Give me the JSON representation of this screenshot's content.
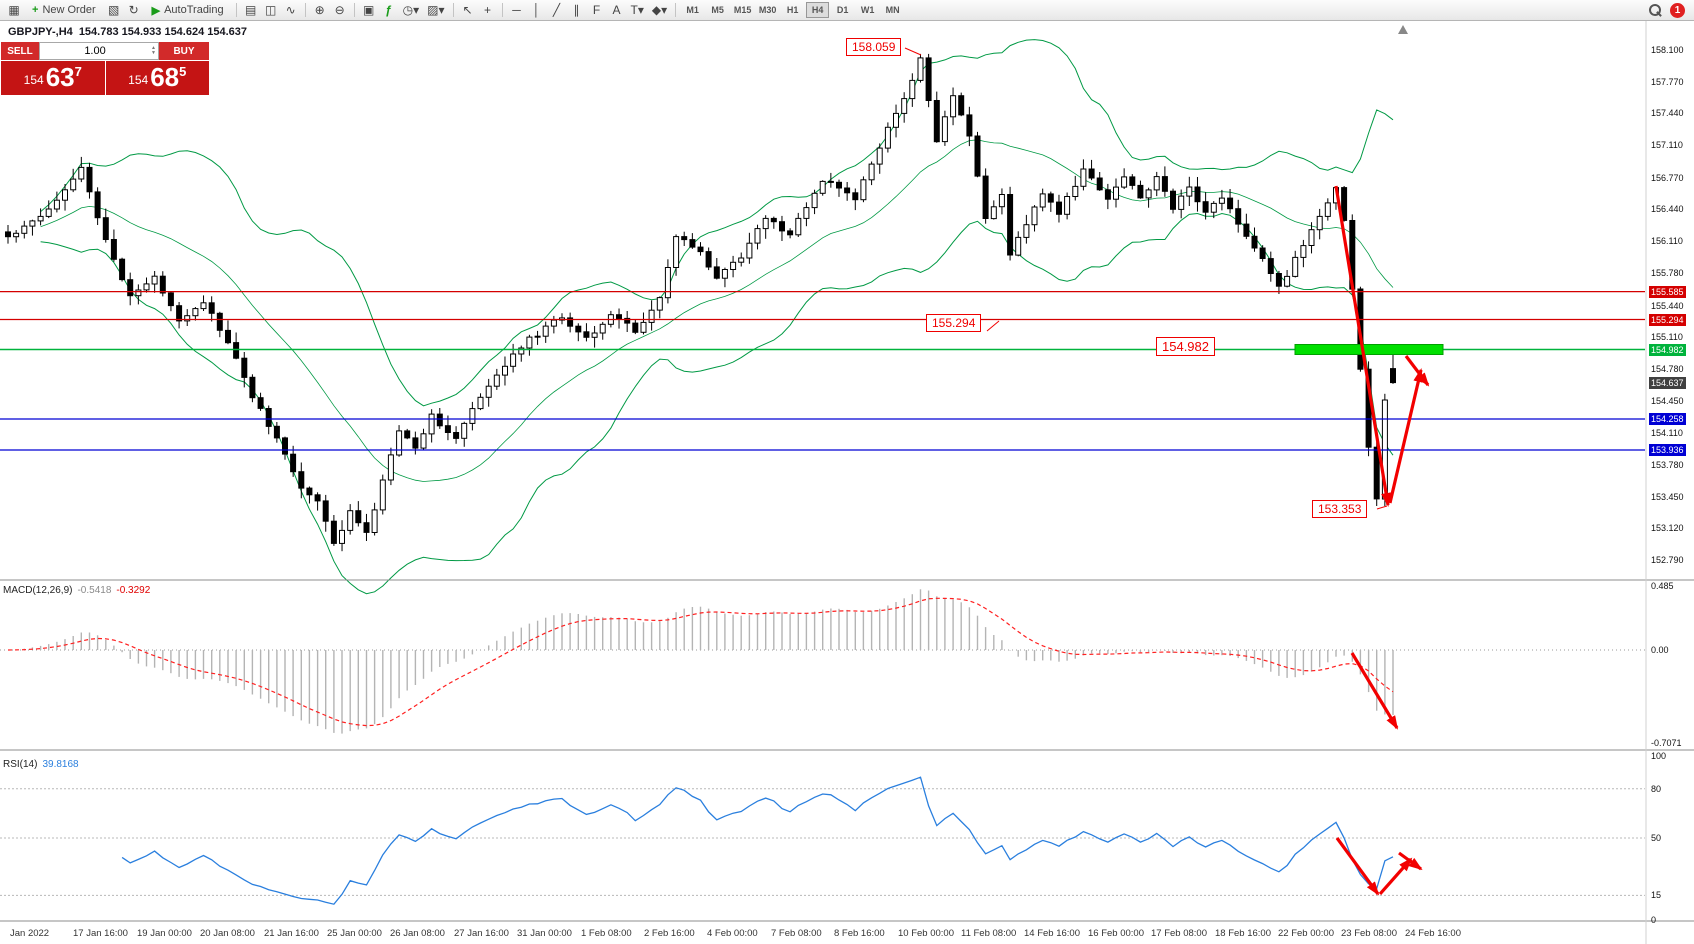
{
  "toolbar": {
    "new_order_label": "New Order",
    "autotrading_label": "AutoTrading",
    "timeframes": [
      "M1",
      "M5",
      "M15",
      "M30",
      "H1",
      "H4",
      "D1",
      "W1",
      "MN"
    ],
    "active_timeframe": "H4",
    "notification_count": "1"
  },
  "icons": {
    "new_chart": "▦",
    "new_order": "+",
    "profiles": "▧",
    "refresh": "↻",
    "play": "▶",
    "bar_chart": "▤",
    "candle_chart": "◫",
    "line_chart": "∿",
    "zoom_in": "⊕",
    "zoom_out": "⊖",
    "tile_windows": "▣",
    "indicators": "ƒ",
    "periods": "◷",
    "templates": "▨",
    "caret": "▾",
    "cursor": "↖",
    "crosshair": "+",
    "vertical_line": "│",
    "horizontal_line": "─",
    "trendline": "╱",
    "channel": "∥",
    "fibonacci": "F",
    "text": "A",
    "text_label": "T",
    "shapes": "◆",
    "up_caret": "▲",
    "down_caret": "▼"
  },
  "symbol_header": {
    "title": "GBPJPY-,H4",
    "ohlc": "154.783 154.933 154.624 154.637"
  },
  "trade_panel": {
    "sell_label": "SELL",
    "buy_label": "BUY",
    "volume": "1.00",
    "sell_prefix": "154",
    "sell_main": "63",
    "sell_sup": "7",
    "buy_prefix": "154",
    "buy_main": "68",
    "buy_sup": "5"
  },
  "macd": {
    "name": "MACD(12,26,9)",
    "value_main": "-0.5418",
    "value_signal": "-0.3292"
  },
  "rsi": {
    "name": "RSI(14)",
    "value": "39.8168"
  },
  "main_chart": {
    "callouts": [
      {
        "value": "158.059"
      },
      {
        "value": "155.294"
      },
      {
        "value": "154.982"
      },
      {
        "value": "153.353"
      }
    ]
  },
  "chart_data": {
    "type": "candlestick",
    "symbol": "GBPJPY-",
    "timeframe": "H4",
    "title": "GBPJPY- H4 with Bollinger Bands, MACD(12,26,9) and RSI(14)",
    "last_ohlc": {
      "open": 154.783,
      "high": 154.933,
      "low": 154.624,
      "close": 154.637
    },
    "price_axis_ticks": [
      "158.100",
      "157.770",
      "157.440",
      "157.110",
      "156.770",
      "156.440",
      "156.110",
      "155.780",
      "155.440",
      "155.110",
      "154.780",
      "154.450",
      "154.110",
      "153.780",
      "153.450",
      "153.120",
      "152.790"
    ],
    "price_axis_range": [
      152.603,
      158.433
    ],
    "level_lines": [
      {
        "price": 155.585,
        "color": "#d40000"
      },
      {
        "price": 155.294,
        "color": "#d40000"
      },
      {
        "price": 154.982,
        "color": "#00b33c"
      },
      {
        "price": 154.258,
        "color": "#0000d4"
      },
      {
        "price": 153.936,
        "color": "#0000d4"
      }
    ],
    "current_price": {
      "value": 154.637,
      "badge_color": "#404040"
    },
    "highlight_rect": {
      "price": 154.982,
      "color": "#00e000"
    },
    "candles": {
      "count": 171,
      "close_anchors": [
        [
          0,
          156.15
        ],
        [
          5,
          156.45
        ],
        [
          9,
          156.88
        ],
        [
          12,
          156.1
        ],
        [
          15,
          155.55
        ],
        [
          18,
          155.72
        ],
        [
          21,
          155.3
        ],
        [
          24,
          155.48
        ],
        [
          27,
          155.05
        ],
        [
          30,
          154.5
        ],
        [
          33,
          154.05
        ],
        [
          36,
          153.55
        ],
        [
          38,
          153.4
        ],
        [
          40,
          152.95
        ],
        [
          42,
          153.3
        ],
        [
          44,
          153.05
        ],
        [
          46,
          153.6
        ],
        [
          48,
          154.15
        ],
        [
          50,
          153.95
        ],
        [
          52,
          154.3
        ],
        [
          55,
          154.05
        ],
        [
          57,
          154.35
        ],
        [
          60,
          154.7
        ],
        [
          62,
          154.95
        ],
        [
          65,
          155.15
        ],
        [
          68,
          155.32
        ],
        [
          71,
          155.1
        ],
        [
          74,
          155.35
        ],
        [
          77,
          155.18
        ],
        [
          80,
          155.5
        ],
        [
          82,
          156.15
        ],
        [
          85,
          156.0
        ],
        [
          87,
          155.72
        ],
        [
          90,
          155.95
        ],
        [
          93,
          156.35
        ],
        [
          96,
          156.18
        ],
        [
          100,
          156.75
        ],
        [
          104,
          156.55
        ],
        [
          107,
          157.1
        ],
        [
          110,
          157.6
        ],
        [
          112,
          158.0
        ],
        [
          114,
          157.15
        ],
        [
          116,
          157.62
        ],
        [
          118,
          157.2
        ],
        [
          120,
          156.35
        ],
        [
          122,
          156.6
        ],
        [
          123,
          155.95
        ],
        [
          125,
          156.3
        ],
        [
          127,
          156.62
        ],
        [
          129,
          156.4
        ],
        [
          132,
          156.85
        ],
        [
          135,
          156.55
        ],
        [
          137,
          156.8
        ],
        [
          139,
          156.55
        ],
        [
          141,
          156.78
        ],
        [
          143,
          156.45
        ],
        [
          145,
          156.7
        ],
        [
          147,
          156.4
        ],
        [
          149,
          156.58
        ],
        [
          151,
          156.3
        ],
        [
          153,
          156.05
        ],
        [
          156,
          155.62
        ],
        [
          158,
          155.92
        ],
        [
          160,
          156.2
        ],
        [
          163,
          156.68
        ],
        [
          164,
          156.3
        ],
        [
          165,
          155.6
        ],
        [
          166,
          154.8
        ],
        [
          167,
          153.95
        ],
        [
          168,
          153.4
        ],
        [
          169,
          154.45
        ],
        [
          170,
          154.637
        ]
      ],
      "extremes": {
        "high": {
          "index": 112,
          "price": 158.059
        },
        "low": {
          "index": 168,
          "price": 153.353
        }
      }
    },
    "indicators": {
      "bollinger": {
        "period": 20,
        "deviation": 2,
        "color": "#009944"
      },
      "macd": {
        "fast": 12,
        "slow": 26,
        "signal_period": 9,
        "value_main": -0.5418,
        "value_signal": -0.3292,
        "axis": [
          "0.485",
          "0.00",
          "-0.7071"
        ]
      },
      "rsi": {
        "period": 14,
        "value": 39.8168,
        "axis": [
          "100",
          "80",
          "50",
          "15",
          "0"
        ],
        "levels": [
          80,
          50,
          15
        ]
      }
    },
    "time_axis": [
      "Jan 2022",
      "17 Jan 16:00",
      "19 Jan 00:00",
      "20 Jan 08:00",
      "21 Jan 16:00",
      "25 Jan 00:00",
      "26 Jan 08:00",
      "27 Jan 16:00",
      "31 Jan 00:00",
      "1 Feb 08:00",
      "2 Feb 16:00",
      "4 Feb 00:00",
      "7 Feb 08:00",
      "8 Feb 16:00",
      "10 Feb 00:00",
      "11 Feb 08:00",
      "14 Feb 16:00",
      "16 Feb 00:00",
      "17 Feb 08:00",
      "18 Feb 16:00",
      "22 Feb 00:00",
      "23 Feb 08:00",
      "24 Feb 16:00"
    ]
  }
}
